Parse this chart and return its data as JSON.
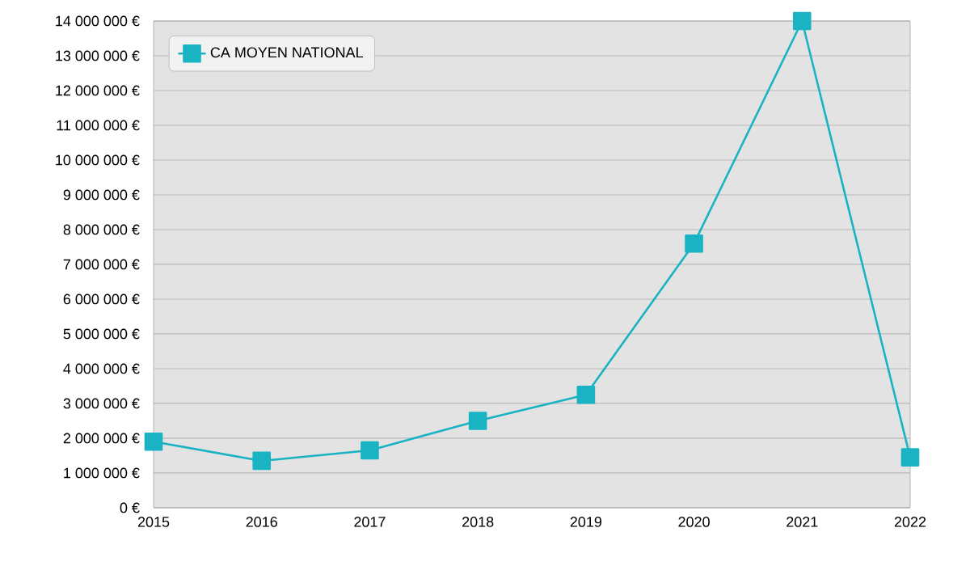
{
  "chart_data": {
    "type": "line",
    "categories": [
      "2015",
      "2016",
      "2017",
      "2018",
      "2019",
      "2020",
      "2021",
      "2022"
    ],
    "series": [
      {
        "name": "CA MOYEN NATIONAL",
        "color": "#1ab3c4",
        "values": [
          1900000,
          1350000,
          1650000,
          2500000,
          3250000,
          7600000,
          14000000,
          1450000
        ]
      }
    ],
    "ylim": [
      0,
      14000000
    ],
    "yticks": [
      {
        "value": 0,
        "label": "0 €"
      },
      {
        "value": 1000000,
        "label": "1 000 000 €"
      },
      {
        "value": 2000000,
        "label": "2 000 000 €"
      },
      {
        "value": 3000000,
        "label": "3 000 000 €"
      },
      {
        "value": 4000000,
        "label": "4 000 000 €"
      },
      {
        "value": 5000000,
        "label": "5 000 000 €"
      },
      {
        "value": 6000000,
        "label": "6 000 000 €"
      },
      {
        "value": 7000000,
        "label": "7 000 000 €"
      },
      {
        "value": 8000000,
        "label": "8 000 000 €"
      },
      {
        "value": 9000000,
        "label": "9 000 000 €"
      },
      {
        "value": 10000000,
        "label": "10 000 000 €"
      },
      {
        "value": 11000000,
        "label": "11 000 000 €"
      },
      {
        "value": 12000000,
        "label": "12 000 000 €"
      },
      {
        "value": 13000000,
        "label": "13 000 000 €"
      },
      {
        "value": 14000000,
        "label": "14 000 000 €"
      }
    ],
    "grid": "y",
    "legend": "top left",
    "marker": "square",
    "line_style": "solid"
  }
}
